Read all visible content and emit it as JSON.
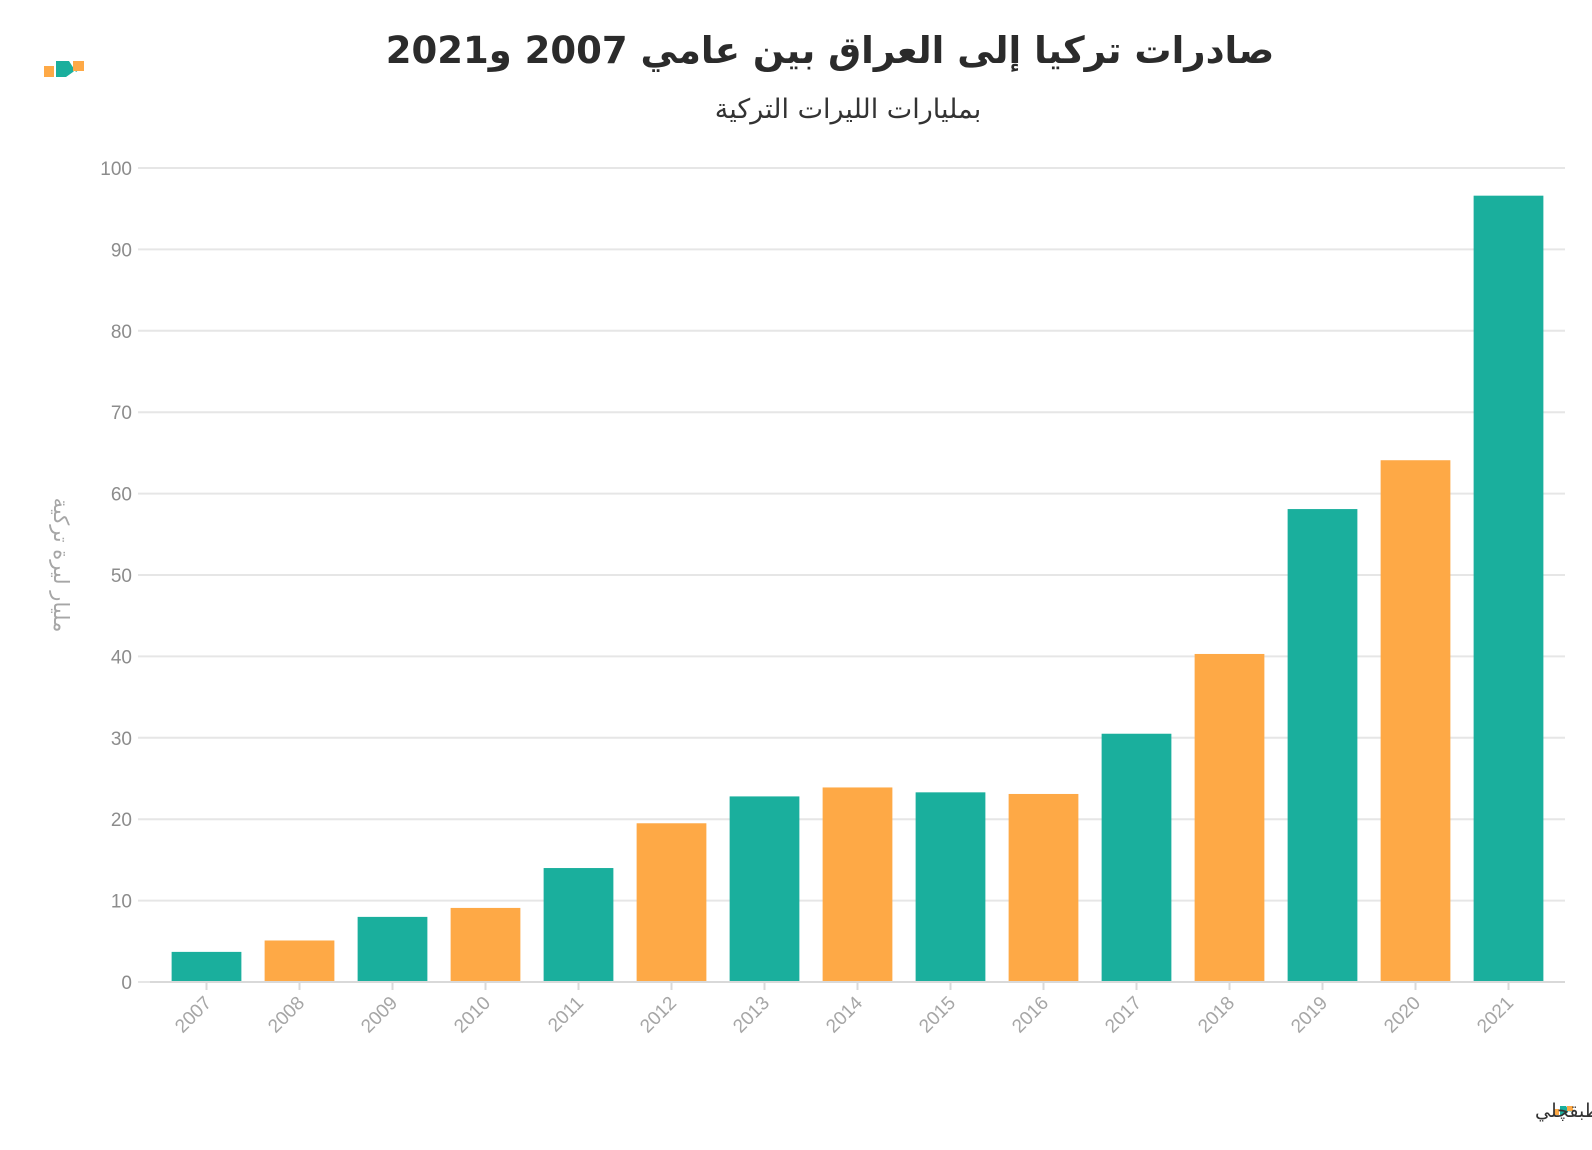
{
  "chart_data": {
    "type": "bar",
    "title": "صادرات تركيا إلى العراق بين عامي 2007 و2021",
    "subtitle": "بمليارات الليرات التركية",
    "xlabel": "",
    "ylabel": "مليار ليرة تركية",
    "ylim": [
      0,
      100
    ],
    "yticks": [
      0,
      10,
      20,
      30,
      40,
      50,
      60,
      70,
      80,
      90,
      100
    ],
    "categories": [
      "2007",
      "2008",
      "2009",
      "2010",
      "2011",
      "2012",
      "2013",
      "2014",
      "2015",
      "2016",
      "2017",
      "2018",
      "2019",
      "2020",
      "2021"
    ],
    "values": [
      3.7,
      5.1,
      8.0,
      9.1,
      14.0,
      19.5,
      22.8,
      23.9,
      23.3,
      23.1,
      30.5,
      40.3,
      58.1,
      64.1,
      96.6
    ],
    "colors": [
      "#1aaf9d",
      "#fea946",
      "#1aaf9d",
      "#fea946",
      "#1aaf9d",
      "#fea946",
      "#1aaf9d",
      "#fea946",
      "#1aaf9d",
      "#fea946",
      "#1aaf9d",
      "#fea946",
      "#1aaf9d",
      "#fea946",
      "#1aaf9d"
    ],
    "grid": true,
    "legend": "none"
  },
  "footer": {
    "source_text": "المصدر: الجمارك التركية • ترتيب: أحمد الطبقچلي"
  },
  "brand": {
    "logo_icon": "brand-logo-icon",
    "teal": "#1aaf9d",
    "orange": "#fea946"
  }
}
